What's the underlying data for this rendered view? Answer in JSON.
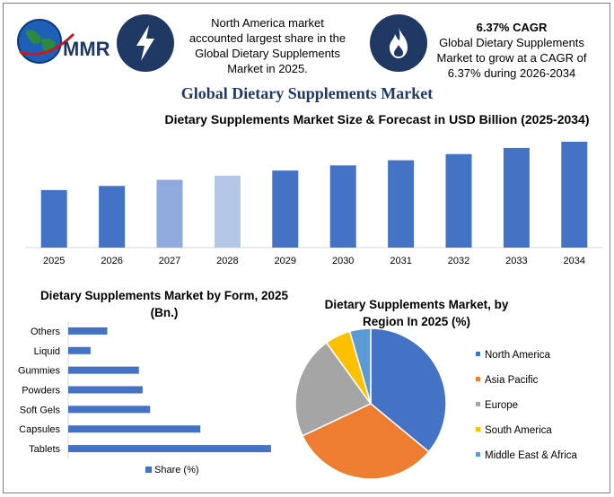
{
  "logo": {
    "text": "MMR",
    "icon": "globe-icon"
  },
  "info_left": {
    "icon": "lightning-icon",
    "text_lines": [
      "North America market",
      "accounted largest share in the",
      "Global Dietary Supplements",
      "Market in 2025."
    ]
  },
  "info_right": {
    "icon": "flame-icon",
    "headline": "6.37% CAGR",
    "text_lines": [
      "Global Dietary Supplements",
      "Market to grow at a CAGR of",
      "6.37% during 2026-2034"
    ]
  },
  "main_title": "Global Dietary Supplements Market",
  "colors": {
    "navy": "#1f3864",
    "bar": "#4472c4",
    "bar_2027": "#8faadc",
    "bar_2028": "#b4c7e7"
  },
  "chart_data": [
    {
      "type": "bar",
      "title": "Dietary Supplements Market Size & Forecast in USD Billion (2025-2034)",
      "categories": [
        "2025",
        "2026",
        "2027",
        "2028",
        "2029",
        "2030",
        "2031",
        "2032",
        "2033",
        "2034"
      ],
      "values": [
        56,
        60,
        66,
        70,
        75,
        80,
        85,
        91,
        97,
        103
      ],
      "ylim": [
        0,
        110
      ],
      "grid": false,
      "legend": "none"
    },
    {
      "type": "bar",
      "orientation": "horizontal",
      "title": "Dietary Supplements Market by Form, 2025 (Bn.)",
      "categories": [
        "Others",
        "Liquid",
        "Gummies",
        "Powders",
        "Soft Gels",
        "Capsules",
        "Tablets"
      ],
      "series": [
        {
          "name": "Share (%)",
          "values": [
            4.2,
            2.4,
            7.6,
            8.0,
            8.8,
            14.2,
            21.8
          ]
        }
      ],
      "xlim": [
        0,
        22
      ],
      "legend": "bottom"
    },
    {
      "type": "pie",
      "title": "Dietary Supplements Market, by Region In 2025 (%)",
      "labels": [
        "North America",
        "Asia Pacific",
        "Europe",
        "South America",
        "Middle East & Africa"
      ],
      "values": [
        36,
        32,
        22,
        5.5,
        4.5
      ],
      "colors": [
        "#4472c4",
        "#ed7d31",
        "#a5a5a5",
        "#ffc000",
        "#5b9bd5"
      ],
      "legend": "right"
    }
  ]
}
